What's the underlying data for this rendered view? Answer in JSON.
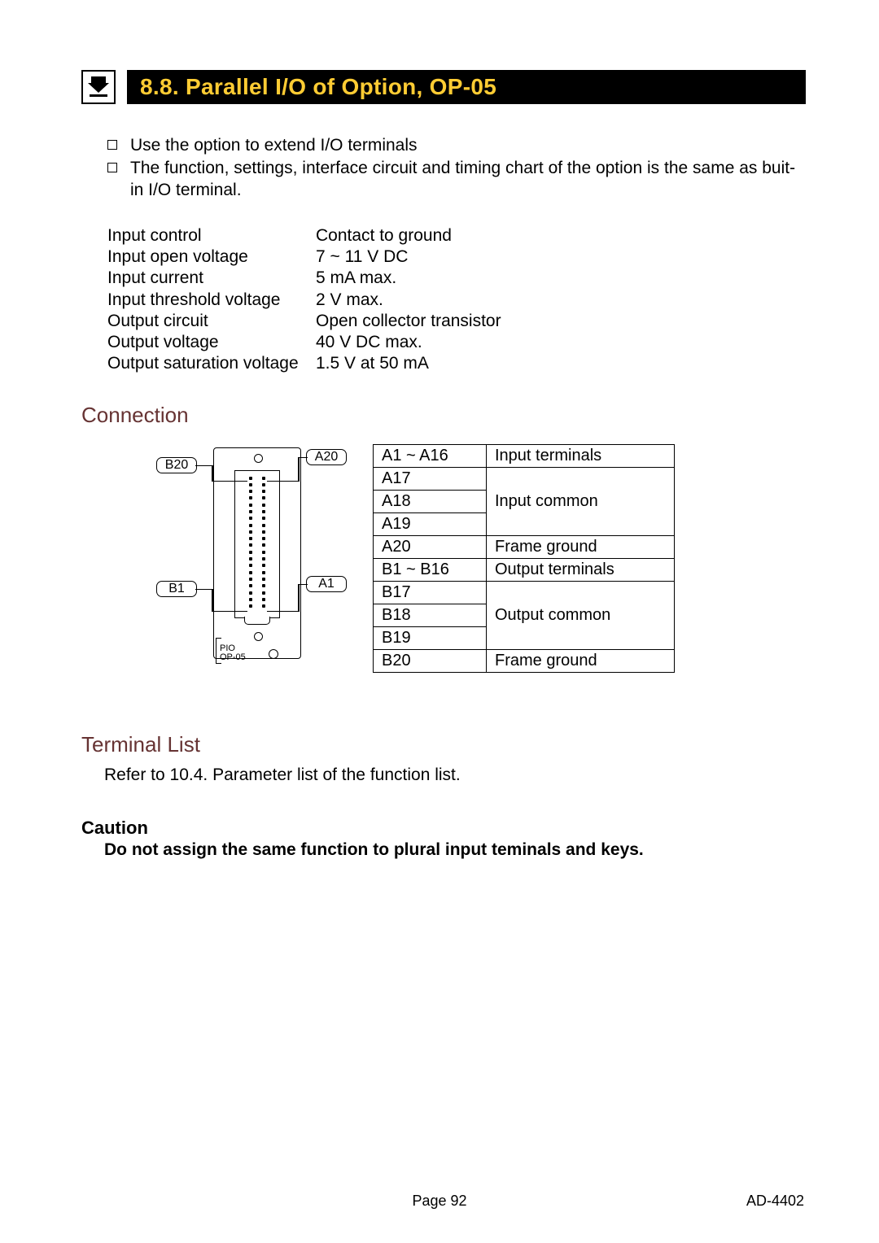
{
  "title": "8.8. Parallel I/O of Option, OP-05",
  "title_color": "#ffcc33",
  "title_bg": "#000000",
  "bullets": [
    "Use the option to extend I/O terminals",
    "The function,  settings, interface circuit and timing chart of the option is the same as buit-in I/O terminal."
  ],
  "specs": [
    {
      "label": "Input control",
      "value": "Contact to ground"
    },
    {
      "label": "Input open voltage",
      "value": "7 ~ 11 V DC"
    },
    {
      "label": "Input current",
      "value": "5 mA max."
    },
    {
      "label": "Input threshold voltage",
      "value": "2 V max."
    },
    {
      "label": "Output circuit",
      "value": "Open collector transistor"
    },
    {
      "label": "Output voltage",
      "value": "40 V DC max."
    },
    {
      "label": "Output saturation voltage",
      "value": "1.5 V at 50 mA"
    }
  ],
  "section_connection": "Connection",
  "section_color": "#663333",
  "diagram": {
    "labels": {
      "a1": "A1",
      "a20": "A20",
      "b1": "B1",
      "b20": "B20"
    },
    "pio1": "PIO",
    "pio2": "OP-05",
    "pin_rows": 20
  },
  "conn_table": [
    {
      "c1": "A1 ~ A16",
      "c2": "Input terminals",
      "rowspan": 1
    },
    {
      "c1": "A17",
      "c2": "Input common",
      "rowspan": 3
    },
    {
      "c1": "A18"
    },
    {
      "c1": "A19"
    },
    {
      "c1": "A20",
      "c2": "Frame ground",
      "rowspan": 1
    },
    {
      "c1": "B1 ~ B16",
      "c2": "Output terminals",
      "rowspan": 1
    },
    {
      "c1": "B17",
      "c2": "Output common",
      "rowspan": 3
    },
    {
      "c1": "B18"
    },
    {
      "c1": "B19"
    },
    {
      "c1": "B20",
      "c2": "Frame ground",
      "rowspan": 1
    }
  ],
  "section_terminal": "Terminal List",
  "terminal_text": "Refer to 10.4. Parameter list of the function list.",
  "caution_h": "Caution",
  "caution_text": "Do not assign the same function to plural input teminals and keys.",
  "footer_page": "Page 92",
  "footer_doc": "AD-4402"
}
